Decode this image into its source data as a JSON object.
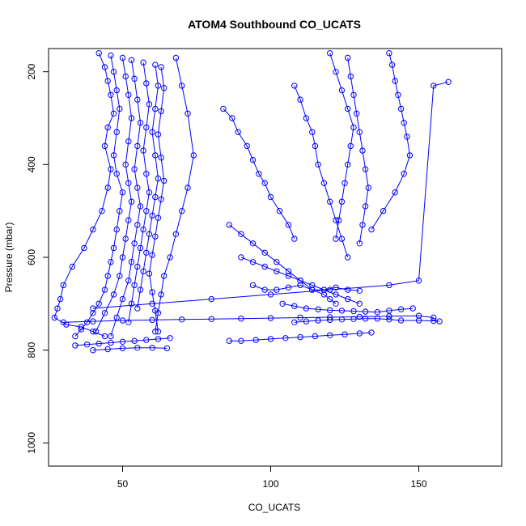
{
  "chart_data": {
    "type": "line",
    "title": "ATOM4 Southbound CO_UCATS",
    "xlabel": "CO_UCATS",
    "ylabel": "Pressure (mbar)",
    "xlim": [
      25,
      178
    ],
    "ylim": [
      1050,
      150
    ],
    "y_reversed": true,
    "x_ticks": [
      "50",
      "100",
      "150"
    ],
    "y_ticks": [
      "200",
      "400",
      "600",
      "800",
      "1000"
    ],
    "grid": false,
    "legend": "none",
    "color": "#0000ff",
    "marker": "open-circle",
    "series": [
      {
        "x": [
          42,
          44,
          45,
          46,
          47,
          45,
          44,
          46,
          45,
          43,
          40,
          37,
          33,
          30,
          29,
          28,
          27,
          31,
          36,
          40,
          44
        ],
        "y": [
          160,
          190,
          220,
          250,
          290,
          320,
          360,
          410,
          450,
          500,
          540,
          580,
          620,
          660,
          690,
          710,
          730,
          745,
          750,
          760,
          770
        ]
      },
      {
        "x": [
          46,
          47,
          48,
          49,
          48,
          47,
          48,
          50,
          49,
          48,
          47,
          46,
          45,
          44,
          42,
          40,
          38,
          36,
          34
        ],
        "y": [
          165,
          200,
          240,
          280,
          330,
          380,
          420,
          460,
          500,
          540,
          580,
          610,
          640,
          670,
          700,
          720,
          740,
          755,
          770
        ]
      },
      {
        "x": [
          50,
          51,
          52,
          53,
          52,
          51,
          52,
          53,
          52,
          51,
          50,
          49,
          47,
          44,
          41
        ],
        "y": [
          170,
          210,
          250,
          300,
          350,
          400,
          440,
          480,
          520,
          560,
          600,
          640,
          680,
          720,
          760
        ]
      },
      {
        "x": [
          53,
          54,
          55,
          56,
          55,
          54,
          55,
          56,
          55,
          54,
          53,
          52,
          50,
          48,
          46
        ],
        "y": [
          175,
          215,
          260,
          310,
          360,
          410,
          450,
          490,
          530,
          570,
          610,
          650,
          690,
          730,
          770
        ]
      },
      {
        "x": [
          57,
          58,
          59,
          58,
          57,
          58,
          59,
          58,
          57,
          56,
          55,
          54,
          53,
          52
        ],
        "y": [
          180,
          225,
          270,
          320,
          370,
          420,
          460,
          500,
          540,
          580,
          620,
          660,
          700,
          740
        ]
      },
      {
        "x": [
          61,
          62,
          61,
          60,
          61,
          62,
          61,
          60,
          59,
          58,
          57,
          56,
          55
        ],
        "y": [
          185,
          230,
          280,
          330,
          380,
          430,
          470,
          510,
          550,
          590,
          630,
          670,
          710
        ]
      },
      {
        "x": [
          63,
          64,
          63,
          62,
          63,
          64,
          63,
          62,
          61,
          60,
          59,
          60,
          61,
          62
        ],
        "y": [
          190,
          235,
          285,
          335,
          385,
          435,
          475,
          515,
          555,
          595,
          635,
          675,
          715,
          760
        ]
      },
      {
        "x": [
          68,
          70,
          72,
          74,
          72,
          70,
          68,
          66,
          64,
          63,
          62,
          61
        ],
        "y": [
          170,
          230,
          290,
          380,
          450,
          500,
          550,
          600,
          640,
          680,
          720,
          760
        ]
      },
      {
        "x": [
          84,
          87,
          89,
          92,
          94,
          96,
          98,
          100,
          103,
          106,
          108
        ],
        "y": [
          280,
          300,
          330,
          360,
          390,
          420,
          440,
          470,
          500,
          530,
          560
        ]
      },
      {
        "x": [
          86,
          90,
          94,
          98,
          102,
          106,
          110,
          114,
          118,
          120,
          122
        ],
        "y": [
          530,
          550,
          570,
          590,
          610,
          630,
          650,
          670,
          680,
          690,
          700
        ]
      },
      {
        "x": [
          90,
          94,
          98,
          102,
          106,
          110,
          114,
          118,
          122,
          126,
          130
        ],
        "y": [
          600,
          610,
          620,
          630,
          640,
          650,
          660,
          670,
          680,
          690,
          700
        ]
      },
      {
        "x": [
          94,
          98,
          102,
          106,
          110,
          114,
          118,
          122,
          126,
          130
        ],
        "y": [
          660,
          670,
          670,
          665,
          660,
          670,
          670,
          665,
          670,
          672
        ]
      },
      {
        "x": [
          104,
          108,
          112,
          116,
          120,
          124,
          128,
          132,
          136,
          140,
          144,
          148
        ],
        "y": [
          700,
          705,
          710,
          712,
          714,
          715,
          716,
          717,
          718,
          715,
          712,
          710
        ]
      },
      {
        "x": [
          108,
          110,
          112,
          114,
          115,
          116,
          118,
          120,
          122,
          124,
          126
        ],
        "y": [
          230,
          260,
          300,
          330,
          360,
          400,
          440,
          480,
          520,
          560,
          600
        ]
      },
      {
        "x": [
          120,
          122,
          124,
          126,
          128,
          127,
          126,
          125,
          124,
          123,
          122
        ],
        "y": [
          160,
          200,
          240,
          280,
          320,
          360,
          400,
          440,
          480,
          520,
          560
        ]
      },
      {
        "x": [
          126,
          127,
          128,
          129,
          130,
          131,
          132,
          133,
          132,
          131,
          130
        ],
        "y": [
          170,
          210,
          250,
          290,
          330,
          370,
          410,
          450,
          490,
          530,
          570
        ]
      },
      {
        "x": [
          140,
          141,
          142,
          143,
          144,
          145,
          146,
          147,
          145,
          142,
          138,
          134
        ],
        "y": [
          160,
          185,
          220,
          250,
          280,
          310,
          340,
          380,
          420,
          460,
          500,
          540
        ]
      },
      {
        "x": [
          108,
          112,
          116,
          120,
          124,
          128,
          132,
          136,
          140,
          144,
          150,
          155,
          157
        ],
        "y": [
          740,
          738,
          736,
          735,
          734,
          733,
          732,
          732,
          734,
          736,
          736,
          737,
          738
        ]
      },
      {
        "x": [
          86,
          90,
          95,
          100,
          105,
          110,
          115,
          120,
          125,
          130,
          134
        ],
        "y": [
          780,
          780,
          778,
          776,
          774,
          772,
          770,
          768,
          766,
          764,
          762
        ]
      },
      {
        "x": [
          30,
          40,
          50,
          60,
          70,
          80,
          90,
          100,
          110,
          120,
          130,
          140,
          150,
          155
        ],
        "y": [
          740,
          738,
          736,
          735,
          734,
          733,
          732,
          731,
          730,
          729,
          728,
          727,
          726,
          730
        ]
      },
      {
        "x": [
          40,
          45,
          50,
          55,
          60,
          65
        ],
        "y": [
          800,
          798,
          796,
          795,
          795,
          796
        ]
      },
      {
        "x": [
          34,
          38,
          42,
          46,
          50,
          54,
          58,
          62,
          66
        ],
        "y": [
          790,
          788,
          786,
          784,
          782,
          780,
          778,
          776,
          774
        ]
      },
      {
        "x": [
          40,
          60,
          80,
          100,
          120,
          140,
          150,
          155,
          160
        ],
        "y": [
          710,
          700,
          690,
          680,
          670,
          660,
          650,
          230,
          222
        ]
      }
    ]
  }
}
